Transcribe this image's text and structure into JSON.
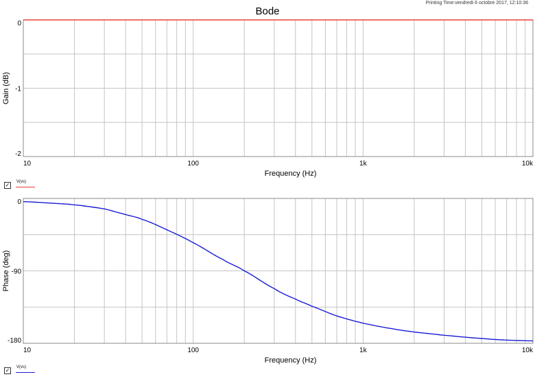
{
  "header": {
    "printing_time": "Printing Time:vendredi 6 octobre 2017, 12:10:36",
    "title": "Bode"
  },
  "colors": {
    "gain": "#e8413c",
    "phase": "#1a1ad6",
    "grid": "#c4c4c4",
    "frame": "#8a8a8a"
  },
  "chart_data": [
    {
      "type": "line",
      "title": "Bode",
      "xlabel": "Frequency (Hz)",
      "ylabel": "Gain (dB)",
      "x_scale": "log",
      "xlim": [
        10,
        10000
      ],
      "ylim": [
        -2,
        0
      ],
      "x_ticks": [
        {
          "v": 10,
          "label": "10"
        },
        {
          "v": 100,
          "label": "100"
        },
        {
          "v": 1000,
          "label": "1k"
        },
        {
          "v": 10000,
          "label": "10k"
        }
      ],
      "y_ticks": [
        {
          "v": 0,
          "label": "0"
        },
        {
          "v": -1,
          "label": "-1"
        },
        {
          "v": -2,
          "label": "-2"
        }
      ],
      "grid": true,
      "legend": {
        "position": "bottom-left",
        "entries": [
          "V(vs)"
        ]
      },
      "series": [
        {
          "name": "V(vs)",
          "x": [
            10,
            100,
            1000,
            10000
          ],
          "y": [
            0,
            0,
            0,
            0
          ]
        }
      ]
    },
    {
      "type": "line",
      "xlabel": "Frequency (Hz)",
      "ylabel": "Phase (deg)",
      "x_scale": "log",
      "xlim": [
        10,
        10000
      ],
      "ylim": [
        -180,
        0
      ],
      "x_ticks": [
        {
          "v": 10,
          "label": "10"
        },
        {
          "v": 100,
          "label": "100"
        },
        {
          "v": 1000,
          "label": "1k"
        },
        {
          "v": 10000,
          "label": "10k"
        }
      ],
      "y_ticks": [
        {
          "v": 0,
          "label": "0"
        },
        {
          "v": -90,
          "label": "-90"
        },
        {
          "v": -180,
          "label": "-180"
        }
      ],
      "grid": true,
      "legend": {
        "position": "bottom-left",
        "entries": [
          "V(vs)"
        ]
      },
      "series": [
        {
          "name": "V(vs)",
          "x": [
            10,
            15,
            20,
            30,
            40,
            50,
            70,
            100,
            150,
            200,
            300,
            400,
            500,
            700,
            1000,
            1500,
            2000,
            3000,
            5000,
            7000,
            10000
          ],
          "y": [
            -4,
            -6,
            -8,
            -13,
            -20,
            -26,
            -39,
            -55,
            -76,
            -90,
            -112,
            -125,
            -134,
            -146,
            -155,
            -162,
            -166,
            -170,
            -174,
            -176,
            -177
          ]
        }
      ]
    }
  ]
}
